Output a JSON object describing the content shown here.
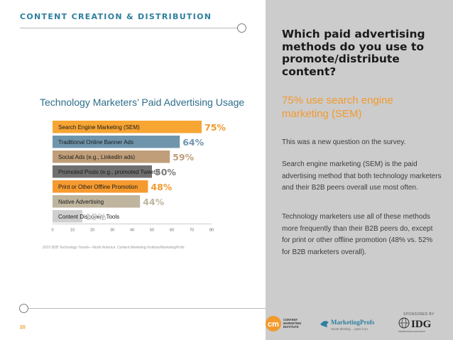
{
  "header": {
    "section_title": "CONTENT CREATION & DISTRIBUTION"
  },
  "page_number": "20",
  "panel": {
    "question": "Which paid advertising methods do you use to promote/distribute content?",
    "answer": "75% use search engine marketing (SEM)",
    "paragraphs": [
      "This was a new question on the survey.",
      "Search engine marketing (SEM) is the paid advertising method that both technology marketers and their B2B peers overall use most often.",
      "Technology marketers use all of these methods more frequently than their B2B peers do, except for print or other offline promotion (48% vs. 52% for B2B marketers overall)."
    ]
  },
  "footer": {
    "sponsor_label": "SPONSORED BY",
    "cmi_text": [
      "CONTENT",
      "MARKETING",
      "INSTITUTE"
    ],
    "cmi_initials": "cm",
    "marketingprofs_name": "MarketingProfs",
    "marketingprofs_tagline": "Smart thinking ... pass it on.",
    "idg_name": "IDG",
    "idg_tagline": "INTERNATIONAL DATA GROUP"
  },
  "chart_data": {
    "type": "bar",
    "orientation": "horizontal",
    "title": "Technology Marketers’ Paid Advertising Usage",
    "categories": [
      "Search Engine Marketing (SEM)",
      "Traditional Online Banner Ads",
      "Social Ads (e.g., LinkedIn ads)",
      "Promoted Posts (e.g., promoted Tweets)",
      "Print or Other Offline Promotion",
      "Native Advertising",
      "Content Discovery Tools"
    ],
    "values": [
      75,
      64,
      59,
      50,
      48,
      44,
      15
    ],
    "value_labels": [
      "75%",
      "64%",
      "59%",
      "50%",
      "48%",
      "44%",
      "15%"
    ],
    "colors": [
      "#f7a533",
      "#6f95ad",
      "#bf9e79",
      "#6f6f6f",
      "#f59a2f",
      "#bfb59e",
      "#cfcfcf"
    ],
    "label_colors": [
      "#f29a2e",
      "#6f95ad",
      "#bf9e79",
      "#7a7a7a",
      "#f29a2e",
      "#bfb59e",
      "#cfcfcf"
    ],
    "xlim": [
      0,
      80
    ],
    "xticks": [
      "0",
      "10",
      "20",
      "30",
      "40",
      "50",
      "60",
      "70",
      "80"
    ],
    "source": "2015 B2B Technology Trends—North America: Content Marketing Institute/MarketingProfs"
  }
}
